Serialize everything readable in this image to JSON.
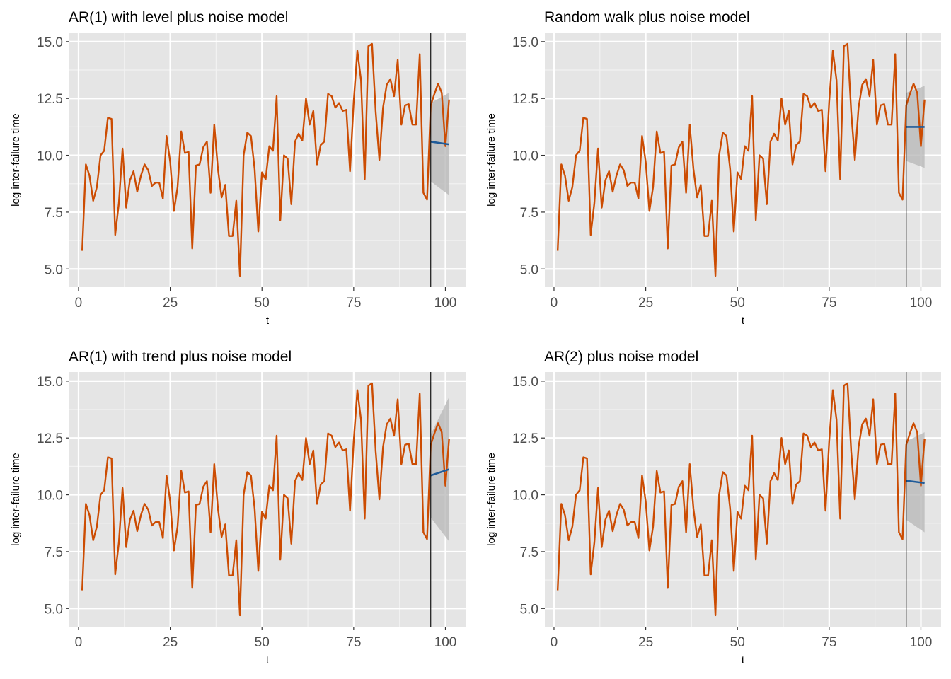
{
  "chart_data": [
    {
      "type": "line",
      "title": "AR(1) with level plus noise model",
      "xlabel": "t",
      "ylabel": "log inter-failure time",
      "xlim": [
        -2.5,
        105.5
      ],
      "ylim": [
        4.2,
        15.4
      ],
      "xticks": [
        0,
        25,
        50,
        75,
        100
      ],
      "yticks": [
        5.0,
        7.5,
        10.0,
        12.5,
        15.0
      ],
      "ytick_labels": [
        "5.0",
        "7.5",
        "10.0",
        "12.5",
        "15.0"
      ],
      "grid": true,
      "cutoff_t": 96,
      "observed_series": "shared",
      "forecast": {
        "t": [
          96,
          101
        ],
        "mean": [
          10.6,
          10.48
        ],
        "lower": [
          8.85,
          8.25
        ],
        "upper": [
          12.3,
          12.75
        ]
      },
      "colors": {
        "observed": "#cc4c02",
        "forecast": "#1f5b99",
        "band": "#b5b5b5"
      }
    },
    {
      "type": "line",
      "title": "Random walk plus noise model",
      "xlabel": "t",
      "ylabel": "log inter-failure time",
      "xlim": [
        -2.5,
        105.5
      ],
      "ylim": [
        4.2,
        15.4
      ],
      "xticks": [
        0,
        25,
        50,
        75,
        100
      ],
      "yticks": [
        5.0,
        7.5,
        10.0,
        12.5,
        15.0
      ],
      "ytick_labels": [
        "5.0",
        "7.5",
        "10.0",
        "12.5",
        "15.0"
      ],
      "grid": true,
      "cutoff_t": 96,
      "observed_series": "shared",
      "forecast": {
        "t": [
          96,
          101
        ],
        "mean": [
          11.25,
          11.25
        ],
        "lower": [
          9.75,
          9.45
        ],
        "upper": [
          12.75,
          13.05
        ]
      },
      "colors": {
        "observed": "#cc4c02",
        "forecast": "#1f5b99",
        "band": "#b5b5b5"
      }
    },
    {
      "type": "line",
      "title": "AR(1) with trend plus noise model",
      "xlabel": "t",
      "ylabel": "log inter-failure time",
      "xlim": [
        -2.5,
        105.5
      ],
      "ylim": [
        4.2,
        15.4
      ],
      "xticks": [
        0,
        25,
        50,
        75,
        100
      ],
      "yticks": [
        5.0,
        7.5,
        10.0,
        12.5,
        15.0
      ],
      "ytick_labels": [
        "5.0",
        "7.5",
        "10.0",
        "12.5",
        "15.0"
      ],
      "grid": true,
      "cutoff_t": 96,
      "observed_series": "shared",
      "forecast": {
        "t": [
          96,
          101
        ],
        "mean": [
          10.85,
          11.12
        ],
        "lower": [
          9.0,
          7.95
        ],
        "upper": [
          12.65,
          14.3
        ]
      },
      "colors": {
        "observed": "#cc4c02",
        "forecast": "#1f5b99",
        "band": "#b5b5b5"
      }
    },
    {
      "type": "line",
      "title": "AR(2) plus noise model",
      "xlabel": "t",
      "ylabel": "log inter-failure time",
      "xlim": [
        -2.5,
        105.5
      ],
      "ylim": [
        4.2,
        15.4
      ],
      "xticks": [
        0,
        25,
        50,
        75,
        100
      ],
      "yticks": [
        5.0,
        7.5,
        10.0,
        12.5,
        15.0
      ],
      "ytick_labels": [
        "5.0",
        "7.5",
        "10.0",
        "12.5",
        "15.0"
      ],
      "grid": true,
      "cutoff_t": 96,
      "observed_series": "shared",
      "forecast": {
        "t": [
          96,
          101
        ],
        "mean": [
          10.62,
          10.52
        ],
        "lower": [
          8.9,
          8.35
        ],
        "upper": [
          12.35,
          12.75
        ]
      },
      "colors": {
        "observed": "#cc4c02",
        "forecast": "#1f5b99",
        "band": "#b5b5b5"
      }
    }
  ],
  "observed": {
    "t": [
      1,
      2,
      3,
      4,
      5,
      6,
      7,
      8,
      9,
      10,
      11,
      12,
      13,
      14,
      15,
      16,
      17,
      18,
      19,
      20,
      21,
      22,
      23,
      24,
      25,
      26,
      27,
      28,
      29,
      30,
      31,
      32,
      33,
      34,
      35,
      36,
      37,
      38,
      39,
      40,
      41,
      42,
      43,
      44,
      45,
      46,
      47,
      48,
      49,
      50,
      51,
      52,
      53,
      54,
      55,
      56,
      57,
      58,
      59,
      60,
      61,
      62,
      63,
      64,
      65,
      66,
      67,
      68,
      69,
      70,
      71,
      72,
      73,
      74,
      75,
      76,
      77,
      78,
      79,
      80,
      81,
      82,
      83,
      84,
      85,
      86,
      87,
      88,
      89,
      90,
      91,
      92,
      93,
      94,
      95,
      96,
      97,
      98,
      99,
      100,
      101
    ],
    "y": [
      5.8,
      9.6,
      9.1,
      8.0,
      8.6,
      10.0,
      10.2,
      11.65,
      11.6,
      6.5,
      7.9,
      10.3,
      7.7,
      8.9,
      9.3,
      8.4,
      9.1,
      9.6,
      9.35,
      8.65,
      8.8,
      8.8,
      8.1,
      10.85,
      9.7,
      7.55,
      8.6,
      11.05,
      10.1,
      10.15,
      5.9,
      9.55,
      9.6,
      10.35,
      10.6,
      8.35,
      11.35,
      9.4,
      8.15,
      8.7,
      6.45,
      6.45,
      8.0,
      4.7,
      10.0,
      11.0,
      10.85,
      9.4,
      6.65,
      9.25,
      8.95,
      10.4,
      10.2,
      12.6,
      7.15,
      10.0,
      9.85,
      7.85,
      10.6,
      10.95,
      10.65,
      12.5,
      11.35,
      11.95,
      9.6,
      10.45,
      10.6,
      12.7,
      12.6,
      12.1,
      12.3,
      11.95,
      12.0,
      9.3,
      12.35,
      14.6,
      13.3,
      8.95,
      14.8,
      14.9,
      11.9,
      9.8,
      12.1,
      13.1,
      13.35,
      12.6,
      14.2,
      11.35,
      12.2,
      12.25,
      11.35,
      11.35,
      14.45,
      8.35,
      8.05,
      12.2,
      12.7,
      13.15,
      12.75,
      10.4,
      12.45
    ]
  }
}
